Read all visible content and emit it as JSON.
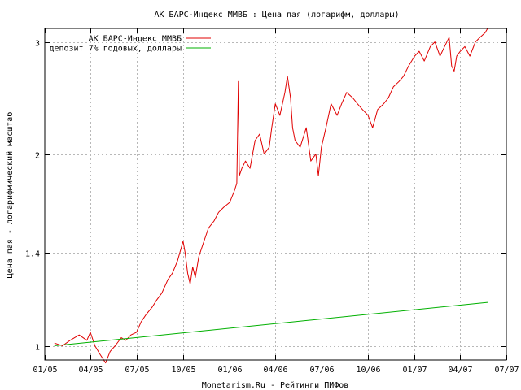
{
  "chart_data": {
    "type": "line",
    "title": "АК БАРС-Индекс ММВБ : Цена пая (логарифм, доллары)",
    "xlabel": "Monetarism.Ru - Рейтинги ПИФов",
    "ylabel": "Цена пая - логарифмический масштаб",
    "y_scale": "log",
    "ylim": [
      0.95,
      3.15
    ],
    "xlim": [
      "2005-01-01",
      "2007-07-01"
    ],
    "grid": true,
    "legend_position": "top-right",
    "x_ticks": [
      "01/05",
      "04/05",
      "07/05",
      "10/05",
      "01/06",
      "04/06",
      "07/06",
      "10/06",
      "01/07",
      "04/07",
      "07/07"
    ],
    "x_tick_dates": [
      "2005-01-01",
      "2005-04-01",
      "2005-07-01",
      "2005-10-01",
      "2006-01-01",
      "2006-04-01",
      "2006-07-01",
      "2006-10-01",
      "2007-01-01",
      "2007-04-01",
      "2007-07-01"
    ],
    "y_ticks": [
      1,
      1.4,
      2,
      3
    ],
    "y_tick_labels": [
      "1",
      "1.4",
      "2",
      "3"
    ],
    "series": [
      {
        "name": "АК БАРС-Индекс ММВБ",
        "color": "#e00000",
        "x": [
          "2005-01-20",
          "2005-02-05",
          "2005-02-20",
          "2005-03-10",
          "2005-03-25",
          "2005-04-01",
          "2005-04-10",
          "2005-04-20",
          "2005-05-01",
          "2005-05-10",
          "2005-05-20",
          "2005-06-01",
          "2005-06-10",
          "2005-06-20",
          "2005-07-01",
          "2005-07-10",
          "2005-07-20",
          "2005-08-01",
          "2005-08-10",
          "2005-08-20",
          "2005-09-01",
          "2005-09-10",
          "2005-09-20",
          "2005-10-01",
          "2005-10-05",
          "2005-10-10",
          "2005-10-15",
          "2005-10-20",
          "2005-10-25",
          "2005-11-01",
          "2005-11-10",
          "2005-11-20",
          "2005-12-01",
          "2005-12-10",
          "2005-12-20",
          "2006-01-01",
          "2006-01-10",
          "2006-01-15",
          "2006-01-18",
          "2006-01-20",
          "2006-01-25",
          "2006-02-01",
          "2006-02-10",
          "2006-02-20",
          "2006-03-01",
          "2006-03-10",
          "2006-03-20",
          "2006-03-25",
          "2006-04-01",
          "2006-04-10",
          "2006-04-20",
          "2006-04-25",
          "2006-05-01",
          "2006-05-05",
          "2006-05-10",
          "2006-05-20",
          "2006-06-01",
          "2006-06-10",
          "2006-06-20",
          "2006-06-25",
          "2006-07-01",
          "2006-07-10",
          "2006-07-20",
          "2006-08-01",
          "2006-08-10",
          "2006-08-20",
          "2006-09-01",
          "2006-09-10",
          "2006-09-20",
          "2006-10-01",
          "2006-10-10",
          "2006-10-20",
          "2006-11-01",
          "2006-11-10",
          "2006-11-20",
          "2006-12-01",
          "2006-12-10",
          "2006-12-20",
          "2007-01-01",
          "2007-01-10",
          "2007-01-20",
          "2007-02-01",
          "2007-02-10",
          "2007-02-20",
          "2007-03-01",
          "2007-03-10",
          "2007-03-15",
          "2007-03-20",
          "2007-03-25",
          "2007-04-01",
          "2007-04-10",
          "2007-04-20",
          "2007-05-01",
          "2007-05-10",
          "2007-05-20",
          "2007-05-25"
        ],
        "values": [
          1.01,
          1.0,
          1.02,
          1.04,
          1.02,
          1.05,
          1.0,
          0.97,
          0.94,
          0.98,
          1.0,
          1.03,
          1.02,
          1.04,
          1.05,
          1.09,
          1.12,
          1.15,
          1.18,
          1.21,
          1.27,
          1.3,
          1.36,
          1.46,
          1.4,
          1.3,
          1.25,
          1.33,
          1.28,
          1.38,
          1.45,
          1.53,
          1.57,
          1.62,
          1.65,
          1.68,
          1.75,
          1.8,
          2.6,
          1.85,
          1.9,
          1.95,
          1.9,
          2.1,
          2.15,
          2.0,
          2.05,
          2.2,
          2.4,
          2.3,
          2.5,
          2.65,
          2.45,
          2.2,
          2.1,
          2.05,
          2.2,
          1.95,
          2.0,
          1.85,
          2.05,
          2.2,
          2.4,
          2.3,
          2.4,
          2.5,
          2.45,
          2.4,
          2.35,
          2.3,
          2.2,
          2.35,
          2.4,
          2.45,
          2.55,
          2.6,
          2.65,
          2.75,
          2.85,
          2.9,
          2.8,
          2.95,
          3.0,
          2.85,
          2.95,
          3.05,
          2.75,
          2.7,
          2.85,
          2.9,
          2.95,
          2.85,
          3.0,
          3.05,
          3.1,
          3.15
        ]
      },
      {
        "name": "депозит 7% годовых, доллары",
        "color": "#00b000",
        "x": [
          "2005-01-20",
          "2007-05-25"
        ],
        "values": [
          1.0,
          1.17
        ]
      }
    ]
  }
}
